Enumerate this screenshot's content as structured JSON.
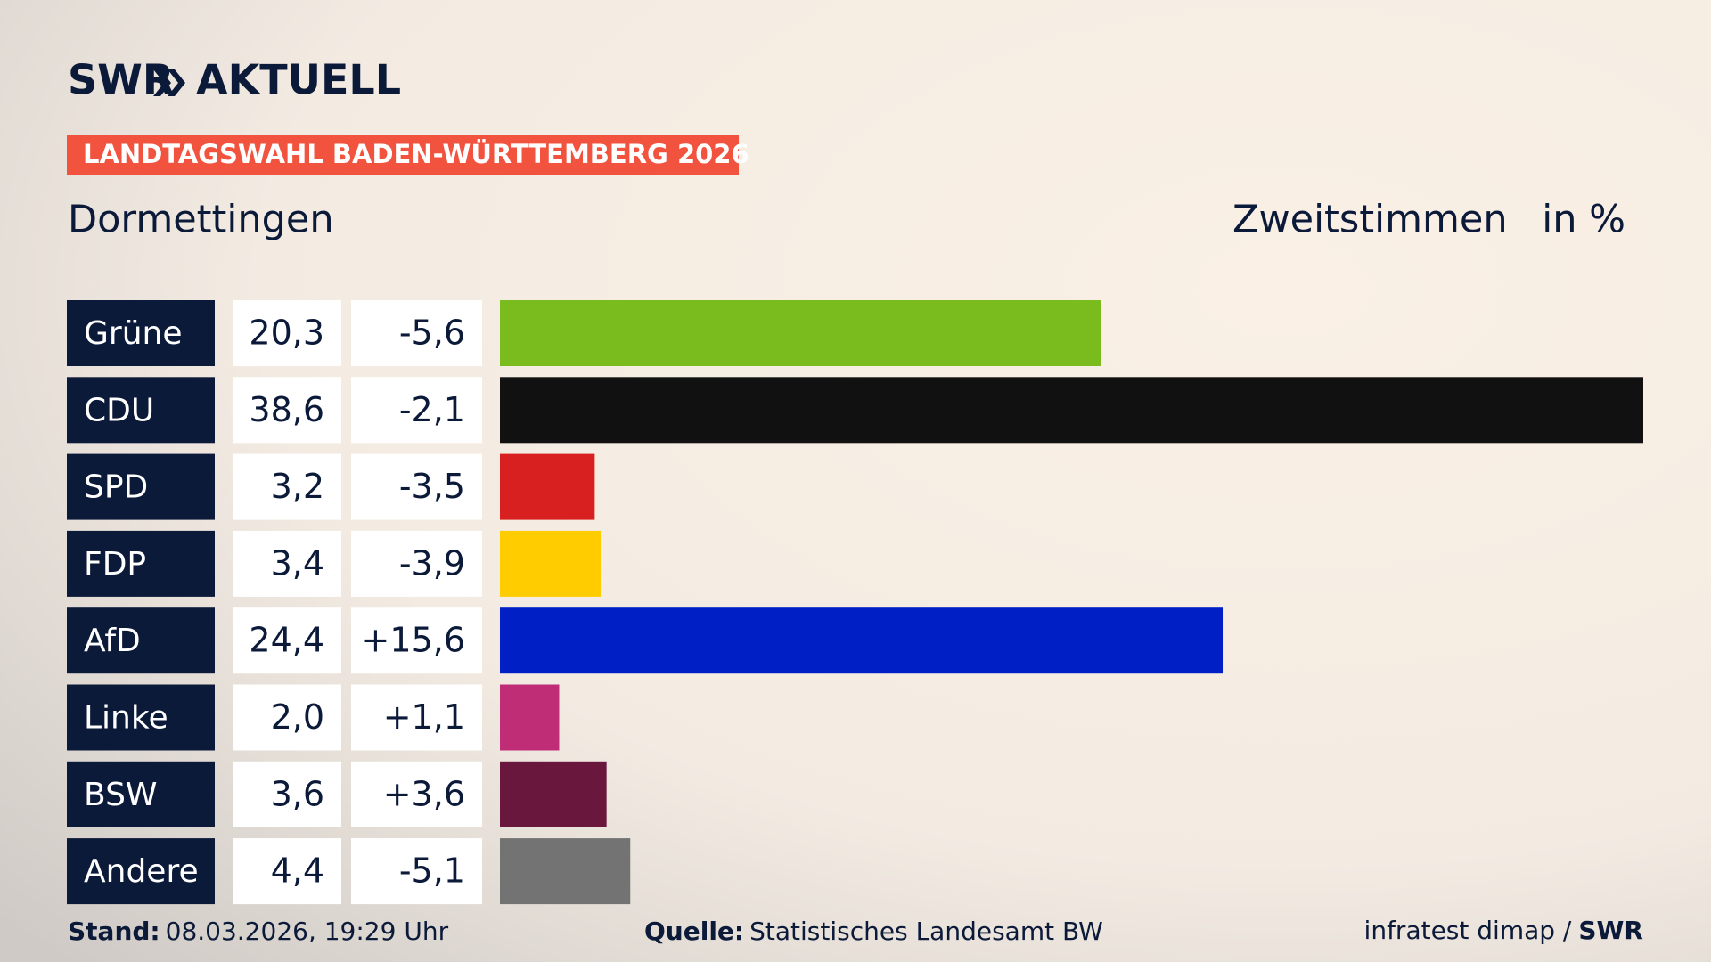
{
  "chart_data": {
    "type": "bar",
    "logo": {
      "brand": "SWR",
      "product": "AKTUELL"
    },
    "banner": "LANDTAGSWAHL BADEN-WÜRTTEMBERG 2026",
    "title": "Dormettingen",
    "measure": "Zweitstimmen",
    "unit": "in %",
    "categories": [
      "Grüne",
      "CDU",
      "SPD",
      "FDP",
      "AfD",
      "Linke",
      "BSW",
      "Andere"
    ],
    "values": [
      20.3,
      38.6,
      3.2,
      3.4,
      24.4,
      2.0,
      3.6,
      4.4
    ],
    "value_labels": [
      "20,3",
      "38,6",
      "3,2",
      "3,4",
      "24,4",
      "2,0",
      "3,6",
      "4,4"
    ],
    "changes": [
      -5.6,
      -2.1,
      -3.5,
      -3.9,
      15.6,
      1.1,
      3.6,
      -5.1
    ],
    "change_labels": [
      "-5,6",
      "-2,1",
      "-3,5",
      "-3,9",
      "+15,6",
      "+1,1",
      "+3,6",
      "-5,1"
    ],
    "colors": [
      "#7abb1e",
      "#111111",
      "#d7201f",
      "#ffcc00",
      "#0020c6",
      "#bf2d77",
      "#6a173e",
      "#737373"
    ],
    "footer": {
      "stand_label": "Stand:",
      "stand": "08.03.2026, 19:29 Uhr",
      "source_label": "Quelle:",
      "source": "Statistisches Landesamt BW",
      "credit": "infratest dimap /",
      "credit_brand": "SWR"
    }
  }
}
